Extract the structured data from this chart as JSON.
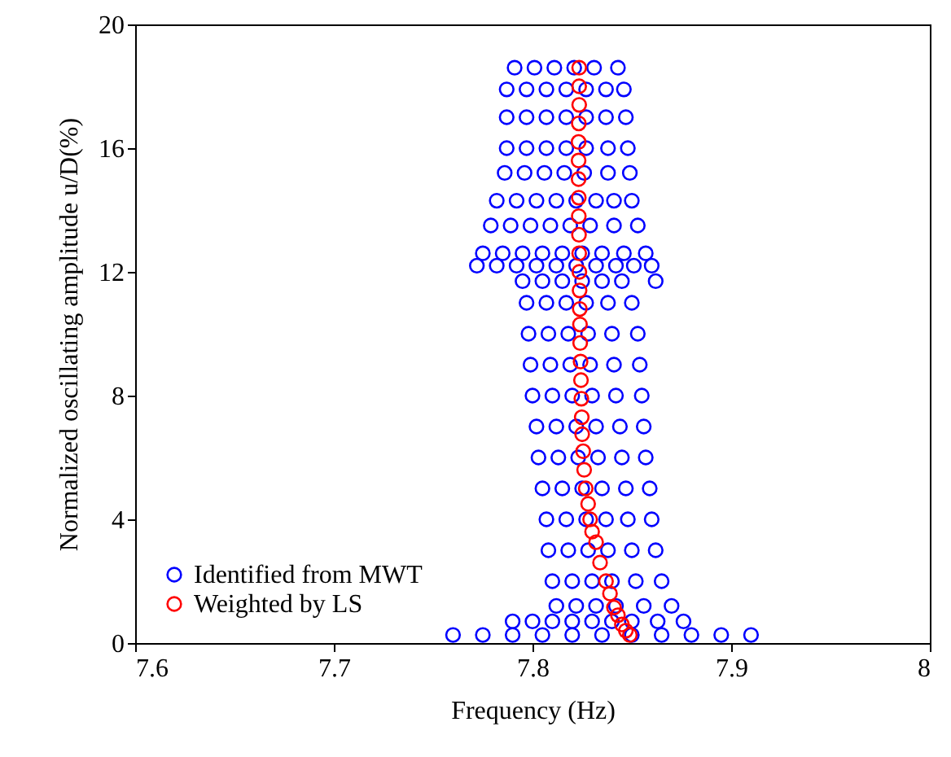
{
  "chart_data": {
    "type": "scatter",
    "xlabel": "Frequency (Hz)",
    "ylabel": "Normalized oscillating amplitude u/D(%)",
    "xlim": [
      7.6,
      8.0
    ],
    "xticks": [
      {
        "value": 7.6,
        "label": "7.6"
      },
      7.7,
      7.8,
      7.9,
      {
        "value": 8.0,
        "label": "8"
      }
    ],
    "ylim": [
      0,
      20
    ],
    "yticks": [
      0,
      4,
      8,
      12,
      16,
      20
    ],
    "grid": false,
    "legend": "bottom left",
    "marker": "circle",
    "series": [
      {
        "name": "Identified from MWT",
        "color": "#0000ff",
        "x": [
          7.791,
          7.801,
          7.811,
          7.821,
          7.831,
          7.843,
          7.787,
          7.797,
          7.807,
          7.817,
          7.827,
          7.837,
          7.846,
          7.787,
          7.797,
          7.807,
          7.817,
          7.827,
          7.837,
          7.847,
          7.787,
          7.797,
          7.807,
          7.817,
          7.827,
          7.838,
          7.848,
          7.786,
          7.796,
          7.806,
          7.816,
          7.826,
          7.838,
          7.849,
          7.782,
          7.792,
          7.802,
          7.812,
          7.822,
          7.832,
          7.841,
          7.85,
          7.779,
          7.789,
          7.799,
          7.809,
          7.819,
          7.829,
          7.841,
          7.853,
          7.775,
          7.785,
          7.795,
          7.805,
          7.815,
          7.825,
          7.835,
          7.846,
          7.857,
          7.772,
          7.782,
          7.792,
          7.802,
          7.812,
          7.822,
          7.832,
          7.842,
          7.851,
          7.86,
          7.795,
          7.805,
          7.815,
          7.825,
          7.835,
          7.845,
          7.862,
          7.797,
          7.807,
          7.817,
          7.827,
          7.838,
          7.85,
          7.798,
          7.808,
          7.818,
          7.828,
          7.84,
          7.853,
          7.799,
          7.809,
          7.819,
          7.829,
          7.841,
          7.854,
          7.8,
          7.81,
          7.82,
          7.83,
          7.842,
          7.855,
          7.802,
          7.812,
          7.822,
          7.832,
          7.844,
          7.856,
          7.803,
          7.813,
          7.823,
          7.833,
          7.845,
          7.857,
          7.805,
          7.815,
          7.825,
          7.835,
          7.847,
          7.859,
          7.807,
          7.817,
          7.827,
          7.837,
          7.848,
          7.86,
          7.808,
          7.818,
          7.828,
          7.838,
          7.85,
          7.862,
          7.81,
          7.82,
          7.83,
          7.84,
          7.852,
          7.865,
          7.812,
          7.822,
          7.832,
          7.842,
          7.856,
          7.87,
          7.79,
          7.8,
          7.81,
          7.82,
          7.83,
          7.84,
          7.85,
          7.863,
          7.876,
          7.76,
          7.775,
          7.79,
          7.805,
          7.82,
          7.835,
          7.85,
          7.865,
          7.88,
          7.895,
          7.91
        ],
        "values": [
          18.6,
          18.6,
          18.6,
          18.6,
          18.6,
          18.6,
          17.9,
          17.9,
          17.9,
          17.9,
          17.9,
          17.9,
          17.9,
          17.0,
          17.0,
          17.0,
          17.0,
          17.0,
          17.0,
          17.0,
          16.0,
          16.0,
          16.0,
          16.0,
          16.0,
          16.0,
          16.0,
          15.2,
          15.2,
          15.2,
          15.2,
          15.2,
          15.2,
          15.2,
          14.3,
          14.3,
          14.3,
          14.3,
          14.3,
          14.3,
          14.3,
          14.3,
          13.5,
          13.5,
          13.5,
          13.5,
          13.5,
          13.5,
          13.5,
          13.5,
          12.6,
          12.6,
          12.6,
          12.6,
          12.6,
          12.6,
          12.6,
          12.6,
          12.6,
          12.2,
          12.2,
          12.2,
          12.2,
          12.2,
          12.2,
          12.2,
          12.2,
          12.2,
          12.2,
          11.7,
          11.7,
          11.7,
          11.7,
          11.7,
          11.7,
          11.7,
          11.0,
          11.0,
          11.0,
          11.0,
          11.0,
          11.0,
          10.0,
          10.0,
          10.0,
          10.0,
          10.0,
          10.0,
          9.0,
          9.0,
          9.0,
          9.0,
          9.0,
          9.0,
          8.0,
          8.0,
          8.0,
          8.0,
          8.0,
          8.0,
          7.0,
          7.0,
          7.0,
          7.0,
          7.0,
          7.0,
          6.0,
          6.0,
          6.0,
          6.0,
          6.0,
          6.0,
          5.0,
          5.0,
          5.0,
          5.0,
          5.0,
          5.0,
          4.0,
          4.0,
          4.0,
          4.0,
          4.0,
          4.0,
          3.0,
          3.0,
          3.0,
          3.0,
          3.0,
          3.0,
          2.0,
          2.0,
          2.0,
          2.0,
          2.0,
          2.0,
          1.2,
          1.2,
          1.2,
          1.2,
          1.2,
          1.2,
          0.7,
          0.7,
          0.7,
          0.7,
          0.7,
          0.7,
          0.7,
          0.7,
          0.7,
          0.26,
          0.26,
          0.26,
          0.26,
          0.26,
          0.26,
          0.26,
          0.26,
          0.26,
          0.26,
          0.26
        ]
      },
      {
        "name": "Weighted by LS",
        "color": "#ff0000",
        "x": [
          7.8235,
          7.8235,
          7.8235,
          7.8233,
          7.8232,
          7.8232,
          7.8232,
          7.8233,
          7.8233,
          7.8234,
          7.8235,
          7.8236,
          7.8237,
          7.8238,
          7.8239,
          7.824,
          7.8242,
          7.8244,
          7.8246,
          7.8248,
          7.825,
          7.8255,
          7.826,
          7.8268,
          7.828,
          7.829,
          7.83,
          7.832,
          7.834,
          7.837,
          7.839,
          7.841,
          7.843,
          7.845,
          7.847,
          7.849
        ],
        "values": [
          18.6,
          18.0,
          17.4,
          16.8,
          16.2,
          15.6,
          15.0,
          14.4,
          13.8,
          13.2,
          12.6,
          12.0,
          11.4,
          10.8,
          10.3,
          9.7,
          9.1,
          8.5,
          7.9,
          7.3,
          6.75,
          6.2,
          5.6,
          5.0,
          4.5,
          4.0,
          3.6,
          3.26,
          2.6,
          2.0,
          1.6,
          1.15,
          0.9,
          0.6,
          0.4,
          0.26
        ]
      }
    ]
  }
}
